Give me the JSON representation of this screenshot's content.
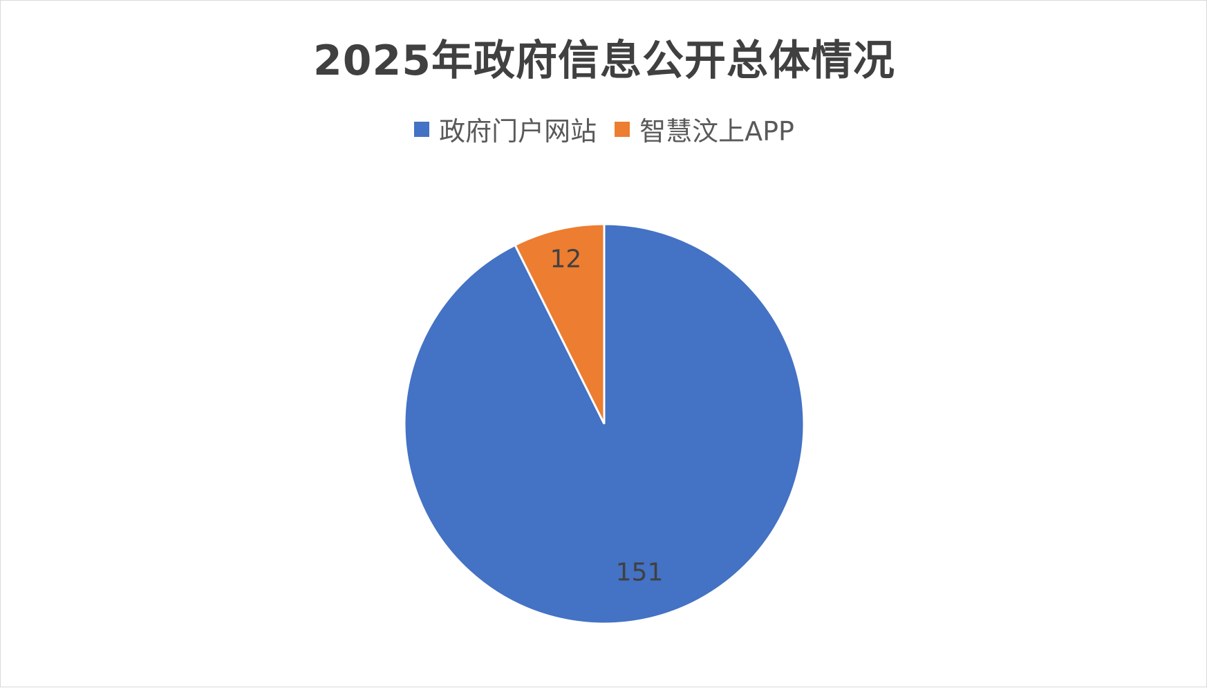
{
  "chart_data": {
    "type": "pie",
    "title": "2025年政府信息公开总体情况",
    "categories": [
      "政府门户网站",
      "智慧汶上APP"
    ],
    "values": [
      151,
      12
    ],
    "colors": [
      "#4472C4",
      "#ED7D31"
    ],
    "data_labels": [
      "151",
      "12"
    ],
    "legend_position": "top",
    "start_angle_deg": 0,
    "direction": "clockwise"
  }
}
